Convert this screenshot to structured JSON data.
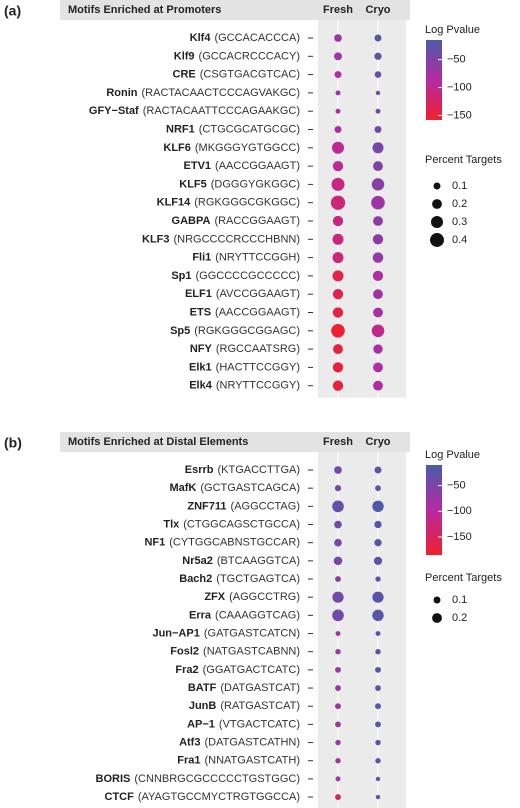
{
  "chart_data": [
    {
      "type": "dot",
      "panel_label": "(a)",
      "title": "Motifs Enriched at Promoters",
      "categories": [
        "Klf4",
        "Klf9",
        "CRE",
        "Ronin",
        "GFY−Staf",
        "NRF1",
        "KLF6",
        "ETV1",
        "KLF5",
        "KLF14",
        "GABPA",
        "KLF3",
        "Fli1",
        "Sp1",
        "ELF1",
        "ETS",
        "Sp5",
        "NFY",
        "Elk1",
        "Elk4"
      ],
      "consensus": [
        "(GCCACACCCA)",
        "(GCCACRCCCACY)",
        "(CSGTGACGTCAC)",
        "(RACTACAACTCCCAGVAKGC)",
        "(RACTACAATTCCCAGAAKGC)",
        "(CTGCGCATGCGC)",
        "(MKGGGYGTGGCC)",
        "(AACCGGAAGT)",
        "(DGGGYGKGGC)",
        "(RGKGGGCGKGGC)",
        "(RACCGGAAGT)",
        "(NRGCCCCRCCCHBNN)",
        "(NRYTTCCGGH)",
        "(GGCCCCGCCCCC)",
        "(AVCCGGAAGT)",
        "(AACCGGAAGT)",
        "(RGKGGGCGGAGC)",
        "(RGCCAATSRG)",
        "(HACTTCCGGY)",
        "(NRYTTCCGGY)"
      ],
      "series": [
        {
          "name": "Fresh",
          "values": [
            -65,
            -70,
            -80,
            -75,
            -80,
            -80,
            -95,
            -95,
            -105,
            -115,
            -105,
            -110,
            -115,
            -140,
            -140,
            -145,
            -155,
            -145,
            -150,
            -150
          ],
          "sizes": [
            0.12,
            0.13,
            0.1,
            0.05,
            0.05,
            0.1,
            0.3,
            0.22,
            0.35,
            0.42,
            0.22,
            0.25,
            0.25,
            0.25,
            0.22,
            0.22,
            0.38,
            0.2,
            0.22,
            0.22
          ]
        },
        {
          "name": "Cryo",
          "values": [
            -20,
            -30,
            -35,
            -40,
            -40,
            -40,
            -45,
            -50,
            -55,
            -70,
            -60,
            -60,
            -65,
            -80,
            -75,
            -75,
            -100,
            -80,
            -85,
            -85
          ],
          "sizes": [
            0.1,
            0.11,
            0.09,
            0.04,
            0.05,
            0.1,
            0.25,
            0.2,
            0.32,
            0.38,
            0.2,
            0.22,
            0.23,
            0.22,
            0.2,
            0.2,
            0.33,
            0.18,
            0.2,
            0.2
          ]
        }
      ],
      "color_title": "Log Pvalue",
      "clim": [
        -158,
        -15
      ],
      "colors": [
        "#4b5ba8",
        "#b52aa3",
        "#f0202c"
      ],
      "cticks": [
        {
          "value": -50,
          "label": "−50"
        },
        {
          "value": -100,
          "label": "−100"
        },
        {
          "value": -150,
          "label": "−150"
        }
      ],
      "size_title": "Percent Targets",
      "size_ticks": [
        0.1,
        0.2,
        0.3,
        0.4
      ]
    },
    {
      "type": "dot",
      "panel_label": "(b)",
      "title": "Motifs Enriched at Distal Elements",
      "categories": [
        "Esrrb",
        "MafK",
        "ZNF711",
        "Tlx",
        "NF1",
        "Nr5a2",
        "Bach2",
        "ZFX",
        "Erra",
        "Jun−AP1",
        "Fosl2",
        "Fra2",
        "BATF",
        "JunB",
        "AP−1",
        "Atf3",
        "Fra1",
        "BORIS",
        "CTCF"
      ],
      "consensus": [
        "(KTGACCTTGA)",
        "(GCTGASTCAGCA)",
        "(AGGCCTAG)",
        "(CTGGCAGSCTGCCA)",
        "(CYTGGCABNSTGCCAR)",
        "(BTCAAGGTCA)",
        "(TGCTGAGTCA)",
        "(AGGCCTRG)",
        "(CAAAGGTCAG)",
        "(GATGASTCATCN)",
        "(NATGASTCABNN)",
        "(GGATGACTCATC)",
        "(DATGASTCAT)",
        "(RATGASTCAT)",
        "(VTGACTCATC)",
        "(DATGASTCATHN)",
        "(NNATGASTCATH)",
        "(CNNBRGCGCCCCCTGSTGGC)",
        "(AYAGTGCCMYCTRGTGGCCA)"
      ],
      "series": [
        {
          "name": "Fresh",
          "values": [
            -40,
            -45,
            -30,
            -40,
            -45,
            -45,
            -60,
            -40,
            -40,
            -75,
            -70,
            -75,
            -80,
            -80,
            -80,
            -80,
            -80,
            -90,
            -150
          ],
          "sizes": [
            0.12,
            0.08,
            0.28,
            0.12,
            0.12,
            0.15,
            0.07,
            0.26,
            0.28,
            0.05,
            0.06,
            0.07,
            0.07,
            0.07,
            0.07,
            0.06,
            0.06,
            0.05,
            0.07
          ]
        },
        {
          "name": "Cryo",
          "values": [
            -30,
            -30,
            -15,
            -20,
            -20,
            -25,
            -30,
            -20,
            -20,
            -20,
            -20,
            -20,
            -20,
            -20,
            -20,
            -20,
            -20,
            -25,
            -35
          ],
          "sizes": [
            0.1,
            0.07,
            0.27,
            0.11,
            0.11,
            0.14,
            0.06,
            0.26,
            0.27,
            0.05,
            0.06,
            0.07,
            0.07,
            0.07,
            0.07,
            0.06,
            0.06,
            0.04,
            0.04
          ]
        }
      ],
      "color_title": "Log Pvalue",
      "clim": [
        -185,
        -10
      ],
      "colors": [
        "#4b5ba8",
        "#b52aa3",
        "#f0202c"
      ],
      "cticks": [
        {
          "value": -50,
          "label": "−50"
        },
        {
          "value": -100,
          "label": "−100"
        },
        {
          "value": -150,
          "label": "−150"
        }
      ],
      "size_title": "Percent Targets",
      "size_ticks": [
        0.1,
        0.2
      ]
    }
  ]
}
